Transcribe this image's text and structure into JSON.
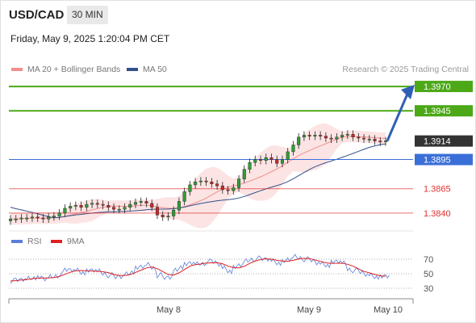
{
  "header": {
    "symbol": "USD/CAD",
    "timeframe": "30 MIN",
    "timestamp": "Friday, May 9, 2025 1:20:04 PM CET"
  },
  "legend": {
    "main": [
      {
        "label": "MA 20 + Bollinger Bands",
        "color": "#f28e8e"
      },
      {
        "label": "MA 50",
        "color": "#33508a"
      }
    ],
    "rsi": [
      {
        "label": "RSI",
        "color": "#5b7fd8"
      },
      {
        "label": "9MA",
        "color": "#e02020"
      }
    ]
  },
  "source": "Research © 2025 Trading Central",
  "chart_data": {
    "type": "candlestick",
    "x_labels": [
      "May 8",
      "May 9",
      "May 10"
    ],
    "price_series": [
      1.3834,
      1.3834,
      1.3835,
      1.3835,
      1.3836,
      1.3835,
      1.3834,
      1.3836,
      1.3837,
      1.384,
      1.3845,
      1.3847,
      1.3848,
      1.3846,
      1.3849,
      1.385,
      1.3849,
      1.3848,
      1.3846,
      1.3844,
      1.3844,
      1.3846,
      1.3849,
      1.3851,
      1.3852,
      1.385,
      1.3846,
      1.3838,
      1.3836,
      1.3837,
      1.3843,
      1.3852,
      1.3862,
      1.3869,
      1.3872,
      1.3873,
      1.3872,
      1.387,
      1.3868,
      1.3864,
      1.3863,
      1.3866,
      1.3875,
      1.3885,
      1.3892,
      1.3895,
      1.3894,
      1.3897,
      1.3895,
      1.3891,
      1.3895,
      1.3903,
      1.391,
      1.3918,
      1.392,
      1.3919,
      1.392,
      1.3919,
      1.3917,
      1.3916,
      1.3918,
      1.392,
      1.3921,
      1.3918,
      1.3917,
      1.3916,
      1.3916,
      1.3914,
      1.3913,
      1.3914
    ],
    "levels": [
      {
        "value": 1.397,
        "label": "1.3970",
        "type": "resistance"
      },
      {
        "value": 1.3945,
        "label": "1.3945",
        "type": "resistance"
      },
      {
        "value": 1.3914,
        "label": "1.3914",
        "type": "last"
      },
      {
        "value": 1.3895,
        "label": "1.3895",
        "type": "pivot"
      },
      {
        "value": 1.3865,
        "label": "1.3865",
        "type": "support"
      },
      {
        "value": 1.384,
        "label": "1.3840",
        "type": "support"
      }
    ],
    "price_range": [
      1.3825,
      1.398
    ],
    "rsi": {
      "levels": [
        70,
        50,
        30
      ],
      "range": [
        20,
        80
      ],
      "values": [
        40,
        41,
        43,
        44,
        45,
        44,
        43,
        45,
        47,
        50,
        55,
        56,
        55,
        52,
        53,
        55,
        53,
        50,
        48,
        45,
        47,
        50,
        53,
        57,
        60,
        62,
        58,
        48,
        44,
        46,
        55,
        60,
        62,
        65,
        63,
        64,
        67,
        66,
        64,
        58,
        54,
        58,
        62,
        67,
        70,
        71,
        70,
        71,
        68,
        65,
        66,
        70,
        73,
        72,
        70,
        68,
        66,
        64,
        62,
        65,
        67,
        64,
        56,
        55,
        52,
        50,
        48,
        46,
        45,
        47
      ]
    }
  }
}
